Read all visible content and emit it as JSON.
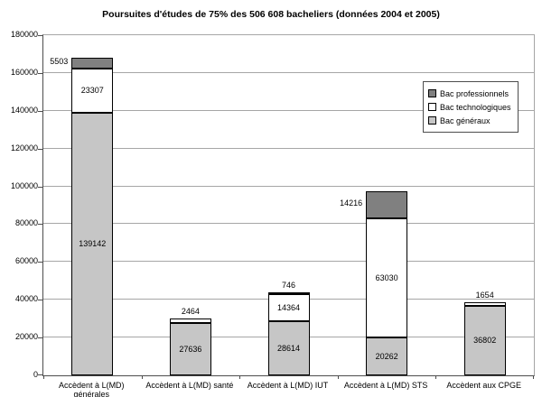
{
  "chart_data": {
    "type": "bar",
    "stacked": true,
    "title": "Poursuites d'études de 75% des 506 608 bacheliers (données 2004 et 2005)",
    "categories": [
      "Accèdent à L(MD) générales",
      "Accèdent à L(MD) santé",
      "Accèdent à L(MD) IUT",
      "Accèdent à L(MD) STS",
      "Accèdent aux CPGE"
    ],
    "series": [
      {
        "name": "Bac généraux",
        "color": "#c6c6c6",
        "values": [
          139142,
          27636,
          28614,
          20262,
          36802
        ]
      },
      {
        "name": "Bac technologiques",
        "color": "#ffffff",
        "values": [
          23307,
          2464,
          14364,
          63030,
          1654
        ]
      },
      {
        "name": "Bac professionnels",
        "color": "#808080",
        "values": [
          5503,
          0,
          746,
          14216,
          0
        ]
      }
    ],
    "value_label_placements": {
      "Bac généraux": [
        "inside",
        "inside",
        "inside",
        "inside",
        "inside"
      ],
      "Bac technologiques": [
        "inside",
        "above",
        "inside",
        "inside",
        "above"
      ],
      "Bac professionnels": [
        "left",
        "none",
        "above",
        "left",
        "none"
      ]
    },
    "legend_order": [
      "Bac professionnels",
      "Bac technologiques",
      "Bac généraux"
    ],
    "legend_position": "upper-right",
    "xlabel": "",
    "ylabel": "",
    "ylim": [
      0,
      180000
    ],
    "ytick_step": 20000,
    "grid": true
  },
  "colors": {
    "gridline": "#a6a6a6",
    "axis": "#4d4d4d",
    "background": "#ffffff"
  }
}
